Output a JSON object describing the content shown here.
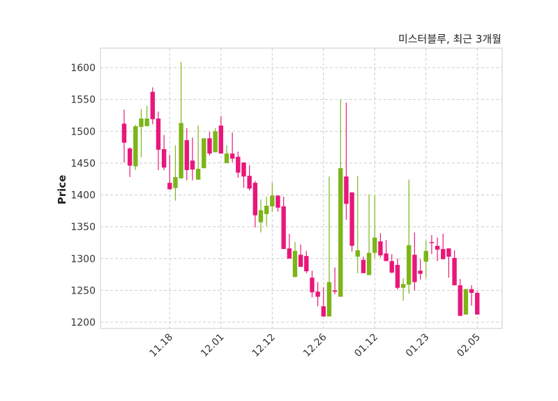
{
  "chart_data": {
    "type": "candlestick",
    "title": "미스터블루, 최근 3개월",
    "xlabel": "",
    "ylabel": "Price",
    "ylim": [
      1190,
      1630
    ],
    "yticks": [
      1200,
      1250,
      1300,
      1350,
      1400,
      1450,
      1500,
      1550,
      1600
    ],
    "xticks": [
      {
        "index": 8,
        "label": "11.18"
      },
      {
        "index": 17,
        "label": "12.01"
      },
      {
        "index": 26,
        "label": "12.12"
      },
      {
        "index": 35,
        "label": "12.26"
      },
      {
        "index": 44,
        "label": "01.12"
      },
      {
        "index": 53,
        "label": "01.23"
      },
      {
        "index": 62,
        "label": "02.05"
      }
    ],
    "grid": true,
    "colors": {
      "up": "#7cb518",
      "down": "#e8177a",
      "grid": "#cccccc",
      "frame": "#dddddd"
    },
    "ohlc": [
      [
        1512,
        1534,
        1451,
        1482
      ],
      [
        1473,
        1475,
        1428,
        1446
      ],
      [
        1445,
        1510,
        1439,
        1508
      ],
      [
        1507,
        1535,
        1459,
        1520
      ],
      [
        1508,
        1540,
        1508,
        1520
      ],
      [
        1562,
        1569,
        1511,
        1519
      ],
      [
        1520,
        1531,
        1439,
        1471
      ],
      [
        1472,
        1494,
        1439,
        1443
      ],
      [
        1419,
        1463,
        1408,
        1409
      ],
      [
        1411,
        1478,
        1391,
        1428
      ],
      [
        1426,
        1609,
        1426,
        1513
      ],
      [
        1486,
        1505,
        1423,
        1439
      ],
      [
        1454,
        1490,
        1423,
        1440
      ],
      [
        1424,
        1509,
        1424,
        1441
      ],
      [
        1442,
        1489,
        1442,
        1489
      ],
      [
        1489,
        1499,
        1462,
        1465
      ],
      [
        1467,
        1505,
        1467,
        1500
      ],
      [
        1509,
        1524,
        1465,
        1465
      ],
      [
        1450,
        1478,
        1450,
        1465
      ],
      [
        1465,
        1498,
        1451,
        1457
      ],
      [
        1460,
        1468,
        1427,
        1435
      ],
      [
        1451,
        1451,
        1411,
        1429
      ],
      [
        1430,
        1447,
        1407,
        1410
      ],
      [
        1419,
        1422,
        1349,
        1368
      ],
      [
        1357,
        1393,
        1341,
        1376
      ],
      [
        1370,
        1397,
        1351,
        1383
      ],
      [
        1382,
        1419,
        1373,
        1399
      ],
      [
        1399,
        1399,
        1374,
        1380
      ],
      [
        1382,
        1397,
        1315,
        1315
      ],
      [
        1316,
        1339,
        1300,
        1300
      ],
      [
        1271,
        1326,
        1271,
        1312
      ],
      [
        1306,
        1322,
        1287,
        1287
      ],
      [
        1304,
        1312,
        1277,
        1280
      ],
      [
        1270,
        1281,
        1239,
        1247
      ],
      [
        1248,
        1263,
        1225,
        1240
      ],
      [
        1225,
        1255,
        1209,
        1209
      ],
      [
        1209,
        1429,
        1209,
        1263
      ],
      [
        1250,
        1286,
        1244,
        1248
      ],
      [
        1240,
        1550,
        1240,
        1442
      ],
      [
        1429,
        1545,
        1361,
        1386
      ],
      [
        1404,
        1404,
        1311,
        1320
      ],
      [
        1303,
        1430,
        1277,
        1313
      ],
      [
        1298,
        1303,
        1277,
        1277
      ],
      [
        1274,
        1401,
        1274,
        1309
      ],
      [
        1309,
        1399,
        1301,
        1333
      ],
      [
        1327,
        1340,
        1302,
        1305
      ],
      [
        1308,
        1329,
        1296,
        1296
      ],
      [
        1296,
        1307,
        1277,
        1278
      ],
      [
        1290,
        1300,
        1251,
        1254
      ],
      [
        1254,
        1269,
        1234,
        1260
      ],
      [
        1259,
        1424,
        1245,
        1321
      ],
      [
        1306,
        1341,
        1250,
        1263
      ],
      [
        1281,
        1299,
        1267,
        1276
      ],
      [
        1295,
        1328,
        1270,
        1312
      ],
      [
        1326,
        1337,
        1307,
        1325
      ],
      [
        1320,
        1333,
        1296,
        1314
      ],
      [
        1315,
        1339,
        1299,
        1299
      ],
      [
        1316,
        1316,
        1270,
        1303
      ],
      [
        1301,
        1313,
        1258,
        1258
      ],
      [
        1258,
        1268,
        1210,
        1210
      ],
      [
        1212,
        1252,
        1212,
        1252
      ],
      [
        1252,
        1258,
        1226,
        1246
      ],
      [
        1246,
        1249,
        1212,
        1212
      ]
    ]
  }
}
